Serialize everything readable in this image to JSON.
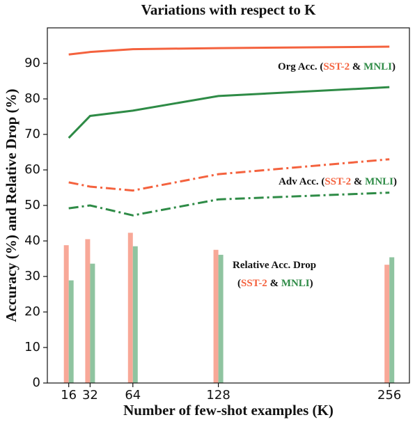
{
  "chart_data": {
    "type": "line",
    "title": "Variations with respect to K",
    "x_label": "Number of few-shot examples (K)",
    "y_label": "Accuracy (%) and Relative Drop (%)",
    "x": [
      16,
      32,
      64,
      128,
      256
    ],
    "xlim": [
      0,
      271
    ],
    "xticks": [
      16,
      32,
      64,
      128,
      256
    ],
    "ylim": [
      0,
      100
    ],
    "yticks": [
      0,
      10,
      20,
      30,
      40,
      50,
      60,
      70,
      80,
      90
    ],
    "series": [
      {
        "type": "line",
        "style": "solid",
        "color": "#f4623e",
        "values": [
          92.5,
          93.2,
          94,
          94.3,
          94.7
        ]
      },
      {
        "type": "line",
        "style": "solid",
        "color": "#2e8b46",
        "values": [
          69,
          75.2,
          76.7,
          80.8,
          83.3
        ]
      },
      {
        "type": "line",
        "style": "dashdot",
        "color": "#f4623e",
        "values": [
          56.5,
          55.3,
          54.2,
          58.8,
          63
        ]
      },
      {
        "type": "line",
        "style": "dashdot",
        "color": "#2e8b46",
        "values": [
          49.2,
          50,
          47.2,
          51.7,
          53.6
        ]
      },
      {
        "type": "bar",
        "side": "left",
        "color": "#f8a898",
        "values": [
          38.8,
          40.5,
          42.3,
          37.5,
          33.3
        ]
      },
      {
        "type": "bar",
        "side": "right",
        "color": "#8fc4a0",
        "values": [
          28.9,
          33.6,
          38.5,
          36.1,
          35.4
        ]
      }
    ],
    "annotations": [
      {
        "lines": [
          [
            {
              "text": "Org Acc. (",
              "color": "#111111"
            },
            {
              "text": "SST-2",
              "color": "#f4623e"
            },
            {
              "text": " & ",
              "color": "#111111"
            },
            {
              "text": "MNLI",
              "color": "#2e8b46"
            },
            {
              "text": ")",
              "color": "#111111"
            }
          ]
        ]
      },
      {
        "lines": [
          [
            {
              "text": "Adv Acc. (",
              "color": "#111111"
            },
            {
              "text": "SST-2",
              "color": "#f4623e"
            },
            {
              "text": " & ",
              "color": "#111111"
            },
            {
              "text": "MNLI",
              "color": "#2e8b46"
            },
            {
              "text": ")",
              "color": "#111111"
            }
          ]
        ]
      },
      {
        "lines": [
          [
            {
              "text": "Relative Acc. Drop",
              "color": "#111111"
            }
          ],
          [
            {
              "text": "(",
              "color": "#111111"
            },
            {
              "text": "SST-2",
              "color": "#f4623e"
            },
            {
              "text": " & ",
              "color": "#111111"
            },
            {
              "text": "MNLI",
              "color": "#2e8b46"
            },
            {
              "text": ")",
              "color": "#111111"
            }
          ]
        ]
      }
    ]
  }
}
